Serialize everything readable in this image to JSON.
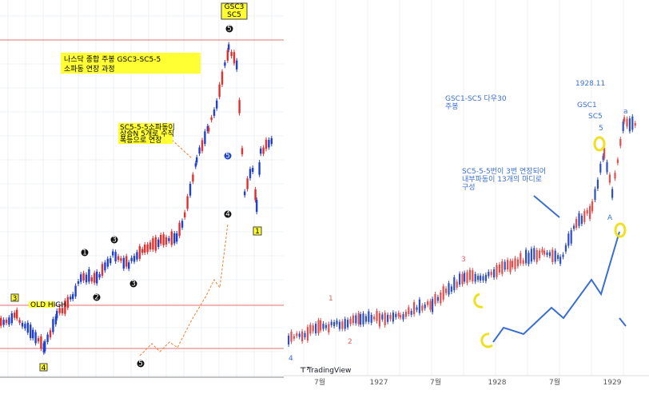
{
  "left": {
    "top_labels": [
      "GSC3",
      "SC5"
    ],
    "title_box": [
      "나스닥 종합 주봉 GSC3-SC5-5",
      "소파동 연장 과정"
    ],
    "note_box": [
      "SC5-5-5소파동이",
      "상승N 5개로 수직",
      "폭등으로 연장"
    ],
    "wave_labels": {
      "three": "3",
      "old_high": "OLD HIGH",
      "four": "4",
      "one": "1"
    },
    "markers": [
      "5",
      "5",
      "3",
      "1",
      "2",
      "3",
      "4",
      "5"
    ]
  },
  "right": {
    "title": [
      "GSC1-SC5 다우30",
      "주봉"
    ],
    "date": "1928.11",
    "gsc": "GSC1",
    "sc": "SC5",
    "five": "5",
    "note": [
      "SC5-5-5번이 3번 연장되어",
      "내부파동이 13개의 마디로",
      "구성"
    ],
    "wave_labels": [
      "A",
      "1",
      "3",
      "2",
      "4",
      "a"
    ],
    "brand": "TradingView",
    "x_labels": [
      "7월",
      "1927",
      "7월",
      "1928",
      "7월",
      "1929"
    ]
  }
}
